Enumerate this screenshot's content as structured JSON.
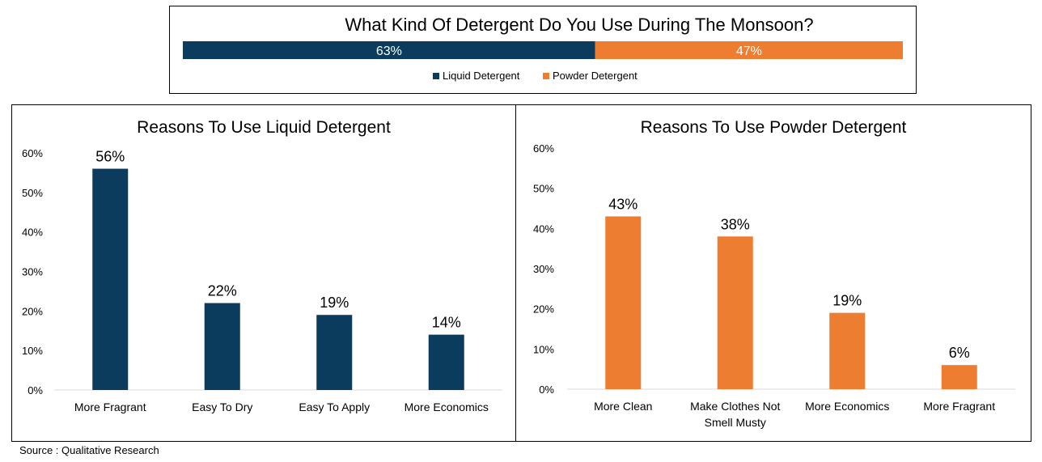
{
  "colors": {
    "liquid": "#0b3c5d",
    "powder": "#ed7d31",
    "axis": "#d9d9d9"
  },
  "source_text": "Source : Qualitative Research",
  "chart_data": [
    {
      "type": "bar",
      "orientation": "horizontal-stacked",
      "title": "What Kind Of Detergent Do You Use During The Monsoon?",
      "series": [
        {
          "name": "Liquid Detergent",
          "values": [
            63
          ],
          "label": "63%",
          "color": "#0b3c5d"
        },
        {
          "name": "Powder Detergent",
          "values": [
            47
          ],
          "label": "47%",
          "color": "#ed7d31"
        }
      ],
      "legend": "bottom"
    },
    {
      "type": "bar",
      "title": "Reasons To Use Liquid Detergent",
      "categories": [
        "More Fragrant",
        "Easy To Dry",
        "Easy To Apply",
        "More Economics"
      ],
      "values": [
        56,
        22,
        19,
        14
      ],
      "labels": [
        "56%",
        "22%",
        "19%",
        "14%"
      ],
      "yticks": [
        "0%",
        "10%",
        "20%",
        "30%",
        "40%",
        "50%",
        "60%"
      ],
      "ylim": [
        0,
        60
      ],
      "color": "#0b3c5d",
      "grid": false
    },
    {
      "type": "bar",
      "title": "Reasons To Use Powder Detergent",
      "categories": [
        [
          "More Clean"
        ],
        [
          "Make Clothes Not",
          "Smell Musty"
        ],
        [
          "More Economics"
        ],
        [
          "More Fragrant"
        ]
      ],
      "values": [
        43,
        38,
        19,
        6
      ],
      "labels": [
        "43%",
        "38%",
        "19%",
        "6%"
      ],
      "yticks": [
        "0%",
        "10%",
        "20%",
        "30%",
        "40%",
        "50%",
        "60%"
      ],
      "ylim": [
        0,
        60
      ],
      "color": "#ed7d31",
      "grid": false
    }
  ]
}
